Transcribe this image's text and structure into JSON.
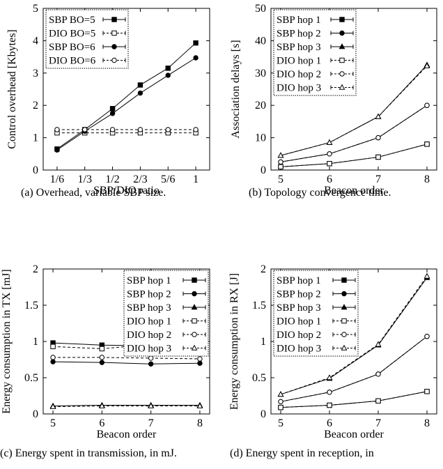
{
  "figure": {
    "captions": [
      "(a) Overhead, variable SBP size.",
      "(b) Topology convergence time.",
      "(c) Energy spent in transmission, in mJ.",
      "(d) Energy spent in reception, in"
    ]
  },
  "chart_data": [
    {
      "type": "line",
      "title": "",
      "xlabel": "SBP/DIO ratio",
      "ylabel": "Control overhead [Kbytes]",
      "categories": [
        "1/6",
        "1/3",
        "1/2",
        "2/3",
        "5/6",
        "1"
      ],
      "xlim": [
        0.5,
        6.5
      ],
      "ylim": [
        0,
        5
      ],
      "yticks": [
        0,
        1,
        2,
        3,
        4,
        5
      ],
      "ytick_labels": [
        "0",
        "1",
        "2",
        "3",
        "4",
        "5"
      ],
      "grid": false,
      "legend_position": "top-left",
      "series": [
        {
          "name": "SBP BO=5",
          "line": "solid",
          "marker": "filled-square",
          "values": [
            0.65,
            1.25,
            1.9,
            2.63,
            3.15,
            3.93
          ]
        },
        {
          "name": "DIO BO=5",
          "line": "dashed",
          "marker": "open-square",
          "values": [
            1.15,
            1.15,
            1.15,
            1.15,
            1.15,
            1.15
          ]
        },
        {
          "name": "SBP BO=6",
          "line": "solid",
          "marker": "filled-circle",
          "values": [
            0.62,
            1.2,
            1.75,
            2.38,
            2.93,
            3.47
          ]
        },
        {
          "name": "DIO BO=6",
          "line": "dashed",
          "marker": "open-circle",
          "values": [
            1.25,
            1.25,
            1.25,
            1.25,
            1.25,
            1.25
          ]
        }
      ]
    },
    {
      "type": "line",
      "title": "",
      "xlabel": "Beacon order",
      "ylabel": "Association delays [s]",
      "x": [
        5,
        6,
        7,
        8
      ],
      "xlim": [
        4.8,
        8.2
      ],
      "ylim": [
        0,
        50
      ],
      "yticks": [
        0,
        10,
        20,
        30,
        40,
        50
      ],
      "ytick_labels": [
        "0",
        "10",
        "20",
        "30",
        "40",
        "50"
      ],
      "grid": false,
      "legend_position": "top-left",
      "series": [
        {
          "name": "SBP hop 1",
          "line": "solid",
          "marker": "filled-square",
          "values": [
            1.0,
            2.0,
            4.0,
            8.0
          ]
        },
        {
          "name": "SBP hop 2",
          "line": "solid",
          "marker": "filled-circle",
          "values": [
            2.5,
            5.0,
            10.0,
            20.0
          ]
        },
        {
          "name": "SBP hop 3",
          "line": "solid",
          "marker": "filled-triangle",
          "values": [
            4.5,
            8.5,
            16.5,
            32.5
          ]
        },
        {
          "name": "DIO hop 1",
          "line": "dashed",
          "marker": "open-square",
          "values": [
            1.0,
            2.0,
            4.0,
            8.0
          ]
        },
        {
          "name": "DIO hop 2",
          "line": "dashed",
          "marker": "open-circle",
          "values": [
            2.5,
            5.0,
            10.0,
            20.0
          ]
        },
        {
          "name": "DIO hop 3",
          "line": "dashed",
          "marker": "open-triangle",
          "values": [
            4.5,
            8.5,
            16.5,
            32.2
          ]
        }
      ]
    },
    {
      "type": "line",
      "title": "",
      "xlabel": "Beacon order",
      "ylabel": "Energy consumption in TX [mJ]",
      "x": [
        5,
        6,
        7,
        8
      ],
      "xlim": [
        4.8,
        8.2
      ],
      "ylim": [
        0,
        2
      ],
      "yticks": [
        0,
        0.5,
        1,
        1.5,
        2
      ],
      "ytick_labels": [
        "0",
        "0.5",
        "1",
        "1.5",
        "2"
      ],
      "grid": false,
      "legend_position": "top-right",
      "series": [
        {
          "name": "SBP hop 1",
          "line": "solid",
          "marker": "filled-square",
          "values": [
            0.98,
            0.95,
            0.94,
            0.95
          ]
        },
        {
          "name": "SBP hop 2",
          "line": "solid",
          "marker": "filled-circle",
          "values": [
            0.72,
            0.71,
            0.69,
            0.7
          ]
        },
        {
          "name": "SBP hop 3",
          "line": "solid",
          "marker": "filled-triangle",
          "values": [
            0.11,
            0.12,
            0.12,
            0.12
          ]
        },
        {
          "name": "DIO hop 1",
          "line": "dashed",
          "marker": "open-square",
          "values": [
            0.93,
            0.9,
            0.96,
            0.95
          ]
        },
        {
          "name": "DIO hop 2",
          "line": "dashed",
          "marker": "open-circle",
          "values": [
            0.78,
            0.78,
            0.77,
            0.76
          ]
        },
        {
          "name": "DIO hop 3",
          "line": "dashed",
          "marker": "open-triangle",
          "values": [
            0.1,
            0.11,
            0.11,
            0.11
          ]
        }
      ]
    },
    {
      "type": "line",
      "title": "",
      "xlabel": "Beacon order",
      "ylabel": "Energy consumption in RX [J]",
      "x": [
        5,
        6,
        7,
        8
      ],
      "xlim": [
        4.8,
        8.2
      ],
      "ylim": [
        0,
        2
      ],
      "yticks": [
        0,
        0.5,
        1,
        1.5,
        2
      ],
      "ytick_labels": [
        "0",
        "0.5",
        "1",
        "1.5",
        "2"
      ],
      "grid": false,
      "legend_position": "top-left",
      "series": [
        {
          "name": "SBP hop 1",
          "line": "solid",
          "marker": "filled-square",
          "values": [
            0.09,
            0.12,
            0.18,
            0.31
          ]
        },
        {
          "name": "SBP hop 2",
          "line": "solid",
          "marker": "filled-circle",
          "values": [
            0.17,
            0.3,
            0.55,
            1.07
          ]
        },
        {
          "name": "SBP hop 3",
          "line": "solid",
          "marker": "filled-triangle",
          "values": [
            0.27,
            0.49,
            0.95,
            1.88
          ]
        },
        {
          "name": "DIO hop 1",
          "line": "dashed",
          "marker": "open-square",
          "values": [
            0.09,
            0.12,
            0.18,
            0.31
          ]
        },
        {
          "name": "DIO hop 2",
          "line": "dashed",
          "marker": "open-circle",
          "values": [
            0.17,
            0.3,
            0.55,
            1.07
          ]
        },
        {
          "name": "DIO hop 3",
          "line": "dashed",
          "marker": "open-triangle",
          "values": [
            0.27,
            0.5,
            0.96,
            1.9
          ]
        }
      ]
    }
  ]
}
